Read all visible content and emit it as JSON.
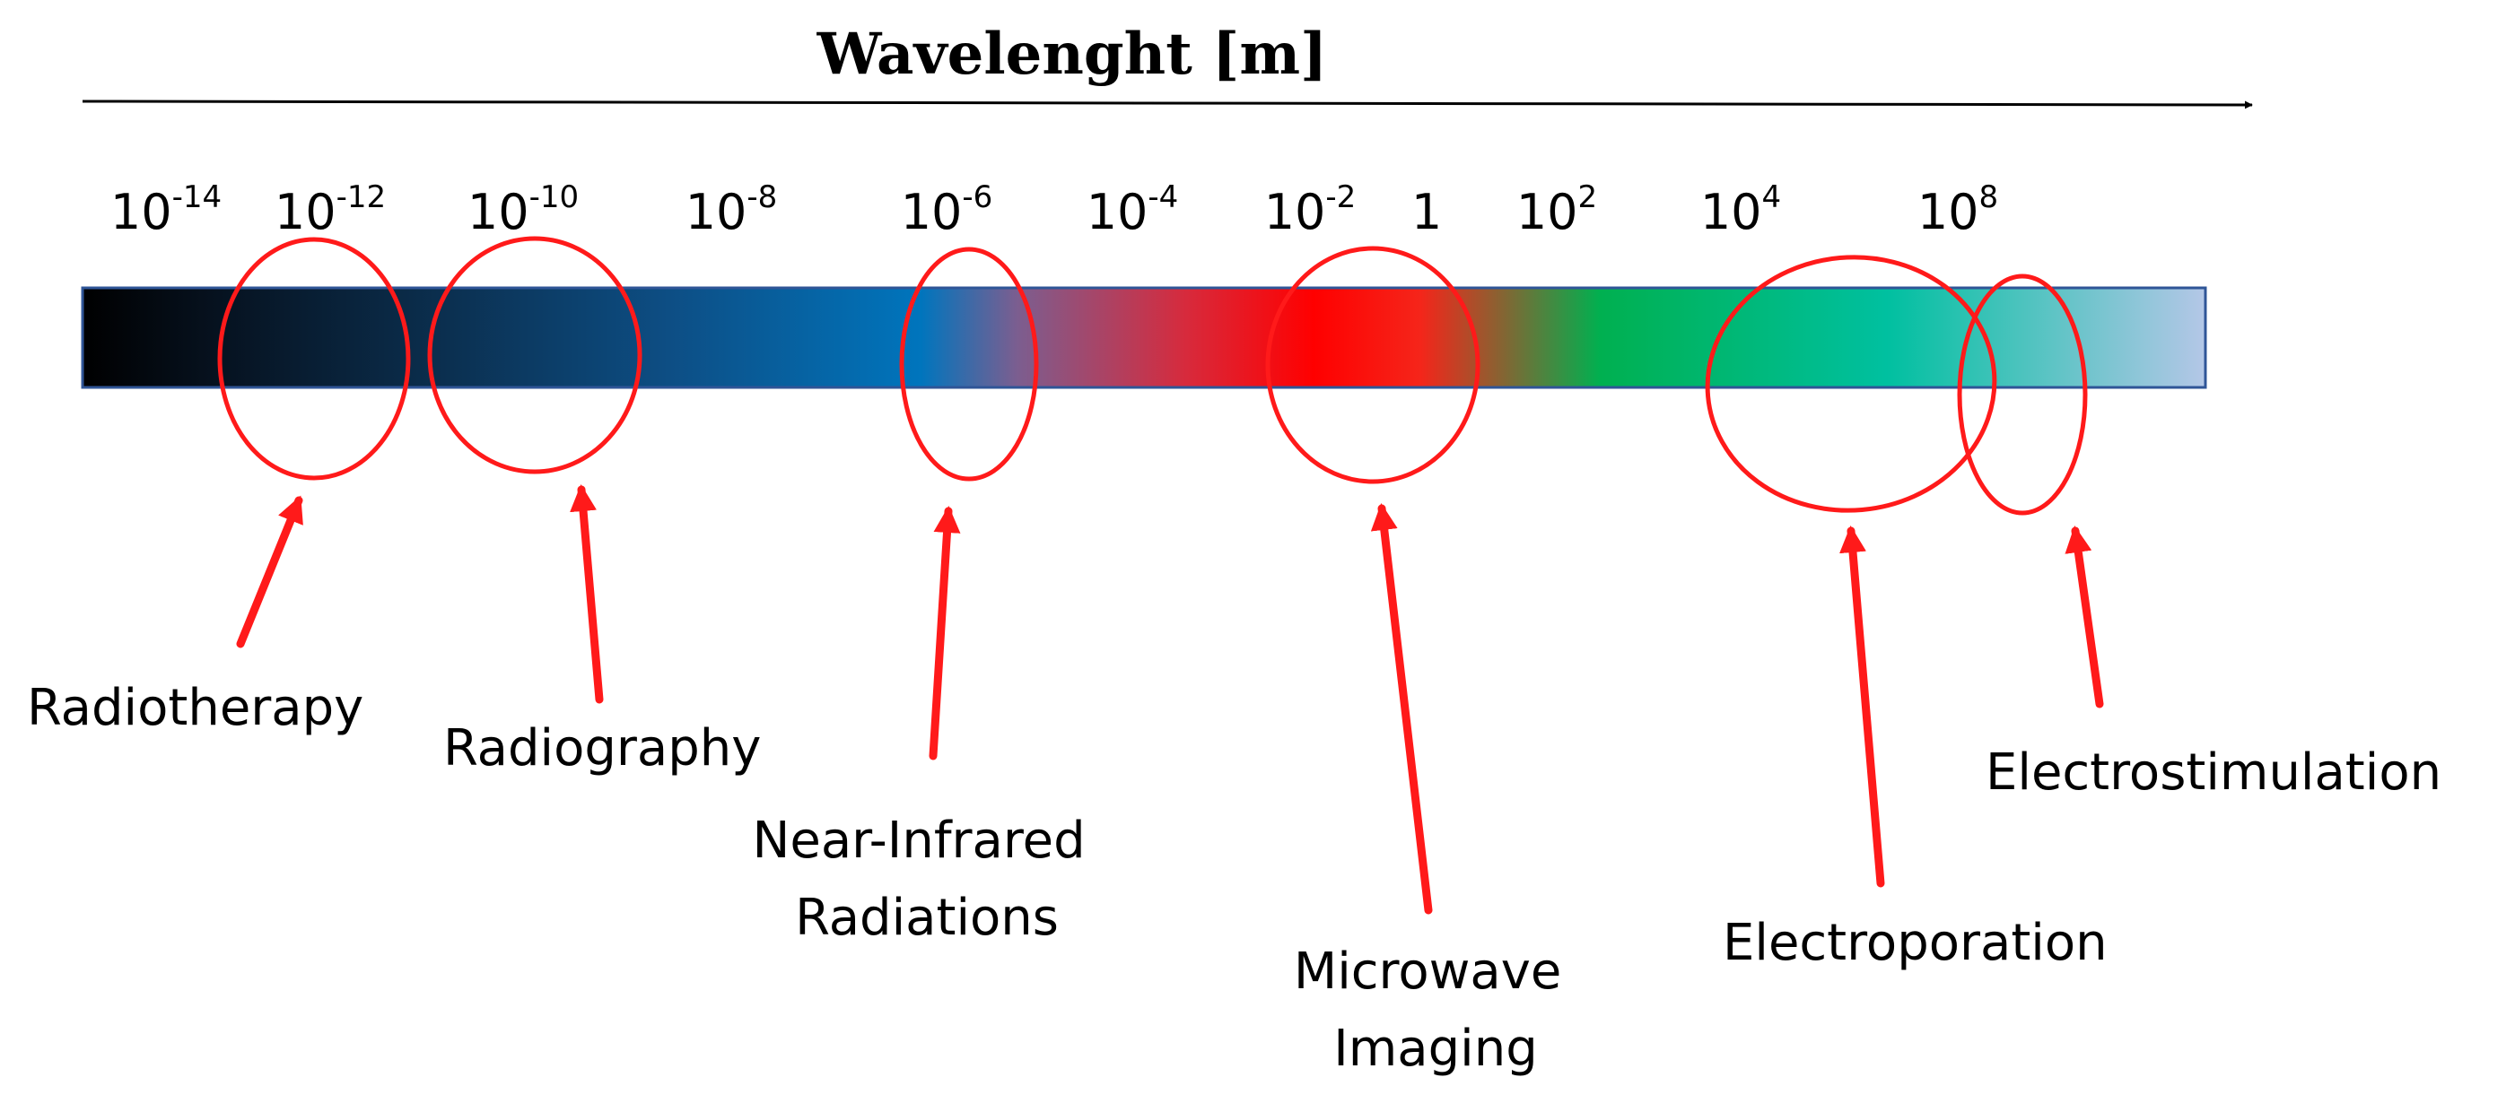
{
  "axis": {
    "title": "Wavelenght [m]"
  },
  "ticks": [
    {
      "base": "10",
      "exp": "-14"
    },
    {
      "base": "10",
      "exp": "-12"
    },
    {
      "base": "10",
      "exp": "-10"
    },
    {
      "base": "10",
      "exp": "-8"
    },
    {
      "base": "10",
      "exp": "-6"
    },
    {
      "base": "10",
      "exp": "-4"
    },
    {
      "base": "10",
      "exp": "-2"
    },
    {
      "base": "1",
      "exp": ""
    },
    {
      "base": "10",
      "exp": "2"
    },
    {
      "base": "10",
      "exp": "4"
    },
    {
      "base": "10",
      "exp": "8"
    }
  ],
  "applications": [
    {
      "id": "radiotherapy",
      "lines": [
        "Radiotherapy"
      ]
    },
    {
      "id": "radiography",
      "lines": [
        "Radiography"
      ]
    },
    {
      "id": "near-infrared",
      "lines": [
        "Near-Infrared",
        "Radiations"
      ]
    },
    {
      "id": "microwave-imaging",
      "lines": [
        "Microwave",
        "Imaging"
      ]
    },
    {
      "id": "electroporation",
      "lines": [
        "Electroporation"
      ]
    },
    {
      "id": "electrostimulation",
      "lines": [
        "Electrostimulation"
      ]
    }
  ],
  "colors": {
    "highlight": "#ff1a1a",
    "spectrum": [
      "#000000",
      "#06111e",
      "#0b2f4f",
      "#0d4f86",
      "#0075bd",
      "#7b5e90",
      "#d72a3c",
      "#ff0000",
      "#f5251a",
      "#00b050",
      "#00c0a0",
      "#b4c7e7"
    ]
  }
}
